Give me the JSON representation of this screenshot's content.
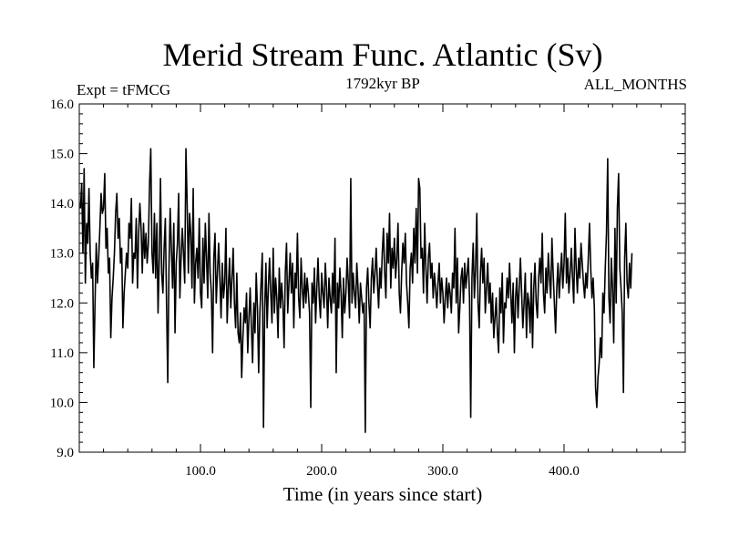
{
  "chart_data": {
    "type": "line",
    "title": "Merid Stream Func. Atlantic (Sv)",
    "subtitle_left": "Expt = tFMCG",
    "subtitle_center": "1792kyr BP",
    "subtitle_right": "ALL_MONTHS",
    "xlabel": "Time (in years since start)",
    "ylabel": "",
    "xlim": [
      0,
      500
    ],
    "ylim": [
      9.0,
      16.0
    ],
    "x_ticks": [
      100,
      200,
      300,
      400
    ],
    "x_tick_labels": [
      "100.0",
      "200.0",
      "300.0",
      "400.0"
    ],
    "y_ticks": [
      9,
      10,
      11,
      12,
      13,
      14,
      15,
      16
    ],
    "y_tick_labels": [
      "9.0",
      "10.0",
      "11.0",
      "12.0",
      "13.0",
      "14.0",
      "15.0",
      "16.0"
    ],
    "x_start": 1,
    "x_step": 1,
    "line_color": "#000000",
    "background": "#ffffff",
    "values": [
      13.9,
      14.4,
      13.0,
      14.7,
      12.4,
      13.6,
      13.2,
      14.3,
      13.0,
      12.5,
      12.8,
      10.7,
      12.0,
      13.2,
      12.4,
      12.9,
      13.5,
      14.2,
      13.8,
      13.9,
      14.6,
      13.1,
      13.5,
      12.6,
      12.9,
      11.3,
      12.1,
      12.5,
      13.0,
      13.8,
      14.2,
      13.3,
      13.7,
      12.8,
      13.1,
      11.5,
      12.2,
      12.6,
      13.0,
      12.7,
      13.6,
      13.3,
      14.1,
      12.4,
      13.0,
      12.9,
      13.7,
      12.3,
      13.4,
      14.0,
      13.5,
      12.6,
      13.6,
      12.9,
      13.4,
      12.8,
      13.2,
      14.4,
      15.1,
      13.0,
      12.6,
      13.8,
      12.5,
      13.6,
      11.8,
      12.9,
      14.5,
      12.6,
      12.2,
      13.1,
      13.7,
      12.0,
      10.4,
      12.7,
      13.9,
      13.1,
      12.3,
      13.6,
      11.4,
      12.8,
      13.2,
      14.2,
      12.1,
      12.9,
      13.5,
      13.0,
      12.4,
      15.1,
      14.0,
      12.6,
      13.8,
      13.4,
      12.3,
      14.3,
      12.0,
      12.8,
      13.1,
      12.5,
      13.7,
      12.2,
      11.9,
      13.3,
      12.4,
      13.6,
      12.9,
      12.1,
      13.8,
      12.6,
      12.2,
      11.0,
      12.9,
      13.4,
      12.0,
      12.6,
      13.2,
      12.5,
      11.7,
      12.8,
      12.1,
      12.4,
      13.5,
      11.6,
      12.3,
      12.9,
      11.9,
      12.5,
      13.1,
      12.0,
      11.5,
      12.6,
      11.4,
      11.2,
      11.8,
      10.5,
      11.3,
      11.9,
      11.6,
      12.2,
      11.0,
      11.7,
      12.3,
      11.5,
      10.8,
      12.0,
      11.4,
      12.6,
      11.9,
      10.6,
      11.8,
      12.4,
      13.0,
      9.5,
      11.9,
      12.8,
      11.5,
      12.3,
      12.9,
      12.2,
      11.6,
      13.1,
      11.8,
      12.5,
      12.1,
      11.3,
      12.7,
      11.9,
      12.4,
      12.0,
      11.1,
      12.6,
      13.2,
      11.8,
      12.4,
      13.0,
      12.2,
      12.8,
      11.5,
      12.6,
      12.3,
      13.4,
      12.1,
      11.7,
      12.9,
      12.3,
      11.9,
      12.6,
      12.0,
      12.5,
      12.2,
      11.8,
      9.9,
      12.4,
      12.0,
      12.7,
      11.6,
      12.3,
      12.9,
      12.1,
      11.7,
      12.6,
      12.2,
      11.9,
      12.8,
      12.3,
      11.5,
      12.5,
      12.1,
      11.8,
      12.6,
      12.0,
      13.3,
      10.6,
      12.4,
      11.9,
      12.7,
      12.2,
      11.3,
      12.5,
      11.8,
      12.2,
      12.9,
      12.4,
      11.7,
      14.5,
      12.0,
      12.6,
      12.2,
      11.9,
      12.8,
      12.3,
      11.6,
      12.4,
      12.1,
      11.8,
      12.0,
      9.4,
      12.3,
      12.7,
      12.0,
      11.5,
      12.5,
      12.9,
      12.2,
      12.6,
      13.1,
      12.4,
      11.9,
      12.7,
      12.3,
      13.0,
      13.5,
      12.6,
      12.1,
      13.4,
      12.8,
      13.8,
      12.3,
      13.1,
      12.7,
      13.3,
      12.5,
      12.9,
      13.6,
      12.2,
      11.8,
      12.6,
      13.2,
      12.8,
      13.4,
      12.4,
      12.0,
      11.5,
      12.7,
      13.0,
      12.4,
      13.5,
      12.8,
      13.9,
      12.6,
      14.5,
      14.3,
      12.9,
      13.1,
      12.2,
      13.6,
      12.7,
      12.0,
      12.9,
      13.2,
      12.5,
      12.8,
      12.1,
      12.6,
      12.3,
      11.9,
      12.4,
      12.8,
      12.0,
      12.5,
      12.2,
      11.6,
      12.1,
      12.5,
      11.9,
      12.4,
      12.2,
      11.8,
      12.6,
      12.3,
      13.5,
      12.0,
      12.9,
      11.4,
      11.9,
      12.5,
      12.7,
      12.0,
      12.8,
      12.3,
      12.6,
      12.9,
      12.1,
      9.7,
      12.5,
      13.2,
      12.1,
      12.7,
      13.8,
      12.0,
      11.5,
      12.6,
      13.1,
      12.4,
      12.9,
      11.8,
      12.3,
      12.8,
      12.0,
      12.4,
      11.6,
      12.2,
      11.3,
      11.7,
      12.1,
      11.4,
      11.0,
      12.3,
      11.8,
      12.6,
      11.2,
      12.0,
      11.9,
      12.5,
      12.1,
      12.8,
      12.2,
      11.6,
      12.4,
      11.0,
      12.1,
      12.5,
      11.7,
      12.3,
      12.9,
      12.2,
      11.5,
      12.0,
      12.6,
      11.3,
      12.2,
      12.0,
      11.4,
      12.6,
      11.1,
      12.3,
      12.8,
      12.0,
      11.7,
      12.5,
      12.9,
      12.4,
      13.4,
      12.2,
      11.8,
      12.7,
      12.2,
      13.0,
      12.5,
      12.1,
      13.3,
      12.6,
      12.0,
      11.4,
      12.3,
      12.8,
      12.1,
      12.6,
      13.0,
      12.3,
      12.8,
      13.8,
      12.4,
      12.9,
      12.2,
      12.6,
      13.1,
      12.5,
      12.0,
      13.5,
      12.7,
      12.2,
      12.9,
      12.5,
      13.2,
      12.8,
      12.4,
      12.1,
      12.6,
      12.3,
      12.9,
      13.6,
      12.7,
      12.1,
      12.5,
      11.9,
      10.3,
      9.9,
      10.5,
      10.8,
      11.3,
      10.9,
      12.2,
      11.8,
      12.7,
      13.4,
      14.9,
      12.1,
      11.6,
      12.9,
      12.3,
      11.2,
      13.5,
      12.0,
      13.9,
      14.6,
      12.7,
      12.3,
      11.8,
      10.2,
      12.9,
      13.6,
      12.4,
      12.1,
      12.8,
      12.3,
      13.0
    ]
  }
}
